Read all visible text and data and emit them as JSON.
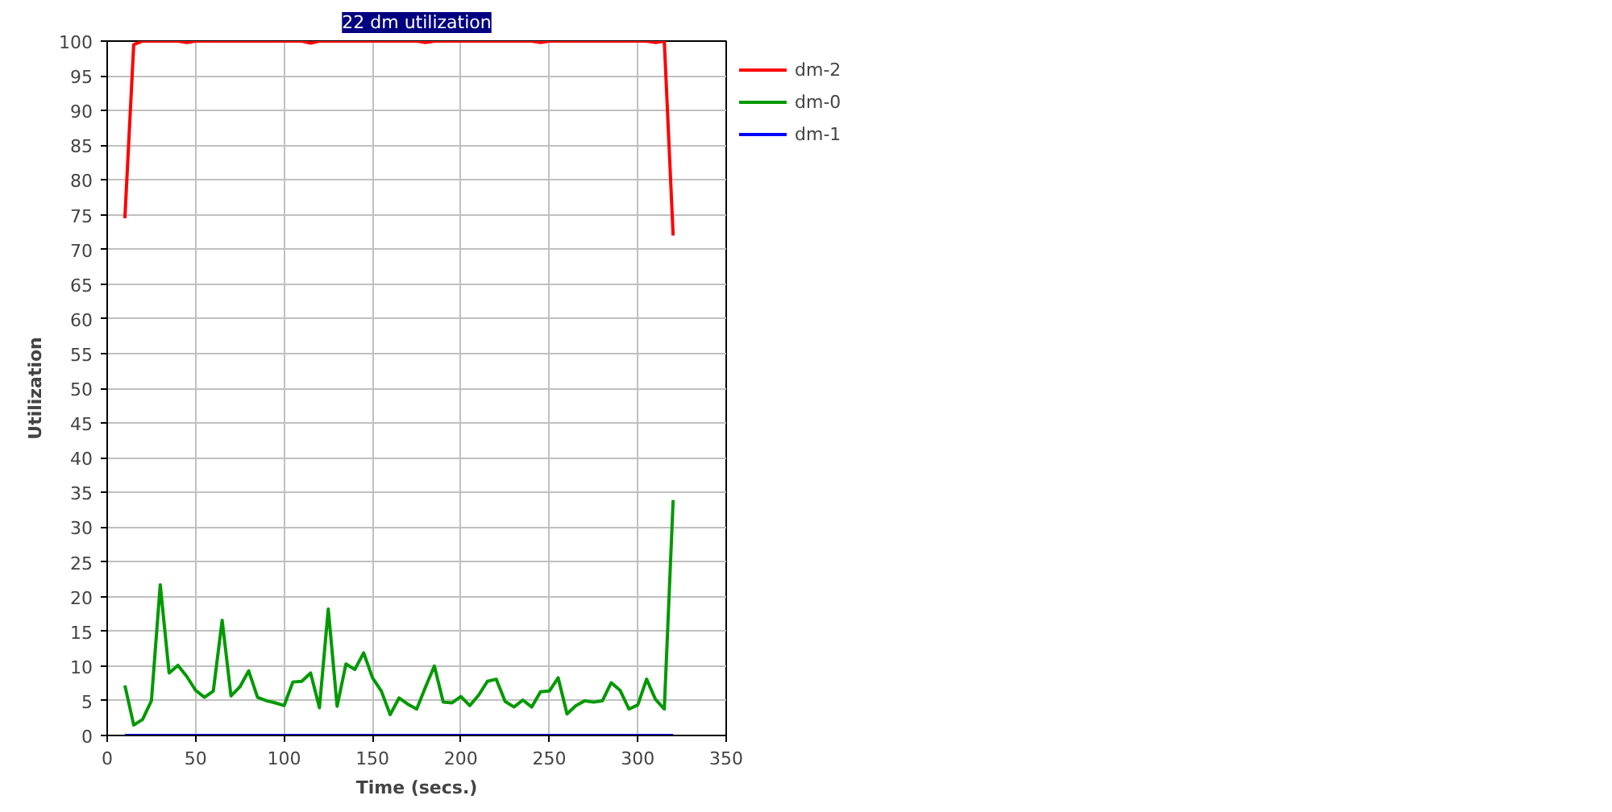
{
  "chart_data": {
    "type": "line",
    "title": "22 dm utilization",
    "xlabel": "Time (secs.)",
    "ylabel": "Utilization",
    "x": [
      10,
      15,
      20,
      25,
      30,
      35,
      40,
      45,
      50,
      55,
      60,
      65,
      70,
      75,
      80,
      85,
      90,
      95,
      100,
      105,
      110,
      115,
      120,
      125,
      130,
      135,
      140,
      145,
      150,
      155,
      160,
      165,
      170,
      175,
      180,
      185,
      190,
      195,
      200,
      205,
      210,
      215,
      220,
      225,
      230,
      235,
      240,
      245,
      250,
      255,
      260,
      265,
      270,
      275,
      280,
      285,
      290,
      295,
      300,
      305,
      310,
      315,
      320
    ],
    "series": [
      {
        "name": "dm-2",
        "color": "#ff0000",
        "values": [
          74.5,
          99.5,
          100,
          100,
          100,
          100,
          100,
          99.8,
          100,
          100,
          100,
          100,
          100,
          100,
          100,
          100,
          100,
          100,
          100,
          100,
          100,
          99.7,
          100,
          100,
          100,
          100,
          100,
          100,
          100,
          100,
          100,
          100,
          100,
          100,
          99.8,
          100,
          100,
          100,
          100,
          100,
          100,
          100,
          100,
          100,
          100,
          100,
          100,
          99.8,
          100,
          100,
          100,
          100,
          100,
          100,
          100,
          100,
          100,
          100,
          100,
          100,
          99.8,
          100,
          72
        ]
      },
      {
        "name": "dm-0",
        "color": "#009900",
        "values": [
          7.2,
          1.5,
          2.3,
          5,
          21.7,
          9,
          10.1,
          8.5,
          6.5,
          5.5,
          6.4,
          16.6,
          5.7,
          7,
          9.3,
          5.5,
          5,
          4.7,
          4.3,
          7.7,
          7.8,
          9,
          4,
          18.2,
          4.2,
          10.3,
          9.5,
          11.9,
          8.3,
          6.4,
          3,
          5.4,
          4.5,
          3.8,
          7,
          10,
          4.8,
          4.7,
          5.6,
          4.3,
          5.8,
          7.8,
          8.1,
          4.9,
          4.1,
          5.1,
          4.1,
          6.3,
          6.4,
          8.3,
          3.1,
          4.3,
          5,
          4.8,
          5,
          7.6,
          6.5,
          3.8,
          4.4,
          8.1,
          5.2,
          3.8,
          33.9
        ]
      },
      {
        "name": "dm-1",
        "color": "#0000ff",
        "values": [
          0,
          0,
          0,
          0,
          0,
          0,
          0,
          0,
          0,
          0,
          0,
          0,
          0,
          0,
          0,
          0,
          0,
          0,
          0,
          0,
          0,
          0,
          0,
          0,
          0,
          0,
          0,
          0,
          0,
          0,
          0,
          0,
          0,
          0,
          0,
          0,
          0,
          0,
          0,
          0,
          0,
          0,
          0,
          0,
          0,
          0,
          0,
          0,
          0,
          0,
          0,
          0,
          0,
          0,
          0,
          0,
          0,
          0,
          0,
          0,
          0,
          0,
          0
        ]
      }
    ],
    "xlim": [
      0,
      350
    ],
    "xticks": [
      0,
      50,
      100,
      150,
      200,
      250,
      300,
      350
    ],
    "ylim": [
      0,
      100
    ],
    "yticks": [
      0,
      5,
      10,
      15,
      20,
      25,
      30,
      35,
      40,
      45,
      50,
      55,
      60,
      65,
      70,
      75,
      80,
      85,
      90,
      95,
      100
    ],
    "grid": true,
    "legend": "right",
    "marker": "none",
    "line_style": "solid"
  }
}
